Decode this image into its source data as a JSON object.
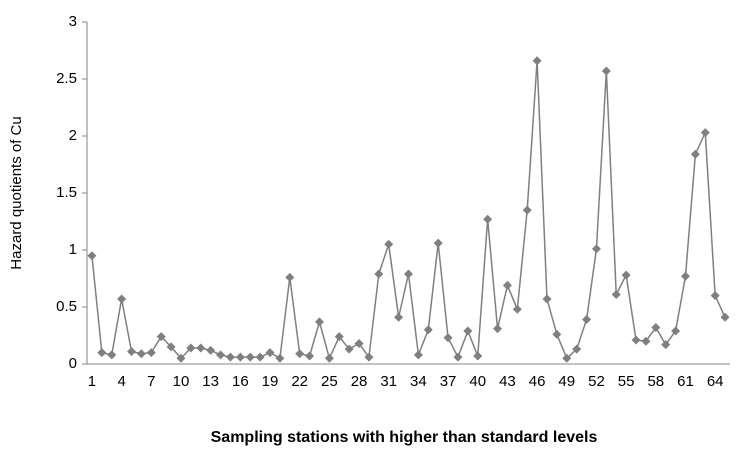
{
  "chart_data": {
    "type": "line",
    "x_label": "Sampling stations with higher than standard levels",
    "y_label": "Hazard quotients of Cu",
    "categories": [
      "1",
      null,
      null,
      "4",
      null,
      null,
      "7",
      null,
      null,
      "10",
      null,
      null,
      "13",
      null,
      null,
      "16",
      null,
      null,
      "19",
      null,
      null,
      "22",
      null,
      null,
      "25",
      null,
      null,
      "28",
      null,
      null,
      "31",
      null,
      null,
      "34",
      null,
      null,
      "37",
      null,
      null,
      "40",
      null,
      null,
      "43",
      null,
      null,
      "46",
      null,
      null,
      "49",
      null,
      null,
      "52",
      null,
      null,
      "55",
      null,
      null,
      "58",
      null,
      null,
      "61",
      null,
      null,
      "64",
      null
    ],
    "series": [
      {
        "name": "Hazard quotients of Cu",
        "color": "#7f7f7f",
        "values": [
          0.95,
          0.1,
          0.08,
          0.57,
          0.11,
          0.09,
          0.1,
          0.24,
          0.15,
          0.05,
          0.14,
          0.14,
          0.12,
          0.08,
          0.06,
          0.06,
          0.06,
          0.06,
          0.1,
          0.05,
          0.76,
          0.09,
          0.07,
          0.37,
          0.05,
          0.24,
          0.13,
          0.18,
          0.06,
          0.79,
          1.05,
          0.41,
          0.79,
          0.08,
          0.3,
          1.06,
          0.23,
          0.06,
          0.29,
          0.07,
          1.27,
          0.31,
          0.69,
          0.48,
          1.35,
          2.66,
          0.57,
          0.26,
          0.05,
          0.13,
          0.39,
          1.01,
          2.57,
          0.61,
          0.78,
          0.21,
          0.2,
          0.32,
          0.17,
          0.29,
          0.77,
          1.84,
          2.03,
          0.6,
          0.41
        ]
      }
    ],
    "ylim": [
      0,
      3
    ],
    "yticks": [
      0,
      0.5,
      1,
      1.5,
      2,
      2.5,
      3
    ],
    "grid": false,
    "marker": "diamond"
  }
}
